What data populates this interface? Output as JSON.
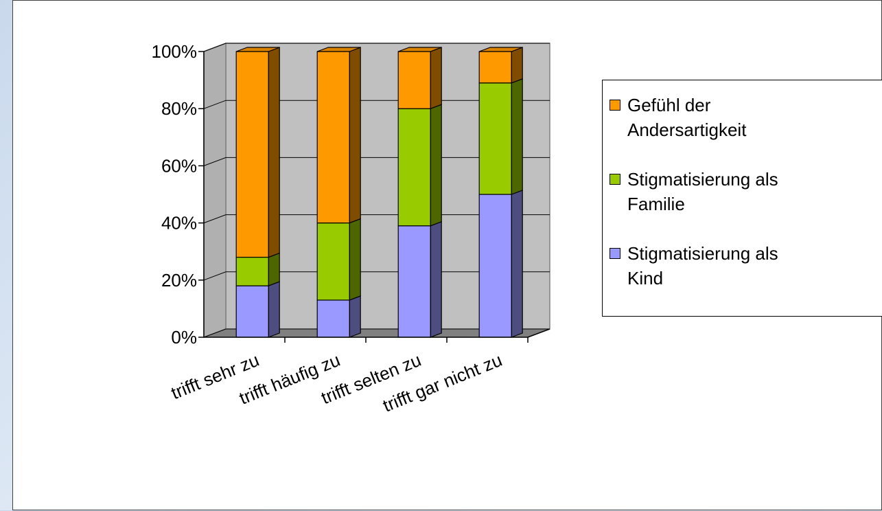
{
  "chart_data": {
    "type": "bar",
    "stacked": true,
    "normalized_percent": true,
    "categories": [
      "trifft sehr zu",
      "trifft häufig zu",
      "trifft selten zu",
      "trifft gar nicht zu"
    ],
    "series": [
      {
        "name": "Stigmatisierung als Kind",
        "color": "#9999ff",
        "values": [
          18,
          13,
          39,
          50
        ]
      },
      {
        "name": "Stigmatisierung als Familie",
        "color": "#99cc00",
        "values": [
          10,
          27,
          41,
          39
        ]
      },
      {
        "name": "Gefühl der Andersartigkeit",
        "color": "#ff9900",
        "values": [
          72,
          60,
          20,
          11
        ]
      }
    ],
    "legend_order": [
      2,
      1,
      0
    ],
    "legend_lines": [
      [
        "Gefühl der",
        "Andersartigkeit"
      ],
      [
        "Stigmatisierung als",
        "Familie"
      ],
      [
        "Stigmatisierung als",
        "Kind"
      ]
    ],
    "y_ticks": [
      "0%",
      "20%",
      "40%",
      "60%",
      "80%",
      "100%"
    ],
    "ylim": [
      0,
      100
    ],
    "grid": true,
    "legend_position": "right",
    "wall_color": "#c0c0c0",
    "floor_color": "#808080"
  }
}
